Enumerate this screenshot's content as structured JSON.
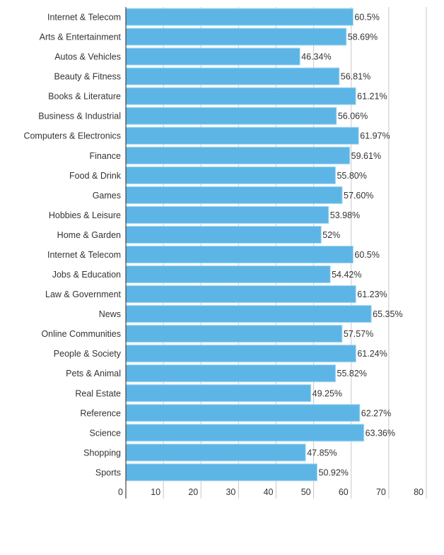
{
  "chart_data": {
    "type": "bar",
    "orientation": "horizontal",
    "categories": [
      "Internet & Telecom",
      "Arts & Entertainment",
      "Autos & Vehicles",
      "Beauty & Fitness",
      "Books & Literature",
      "Business & Industrial",
      "Computers & Electronics",
      "Finance",
      "Food & Drink",
      "Games",
      "Hobbies & Leisure",
      "Home & Garden",
      "Internet & Telecom",
      "Jobs & Education",
      "Law & Government",
      "News",
      "Online Communities",
      "People & Society",
      "Pets & Animal",
      "Real Estate",
      "Reference",
      "Science",
      "Shopping",
      "Sports"
    ],
    "values": [
      60.5,
      58.69,
      46.34,
      56.81,
      61.21,
      56.06,
      61.97,
      59.61,
      55.8,
      57.6,
      53.98,
      52,
      60.5,
      54.42,
      61.23,
      65.35,
      57.57,
      61.24,
      55.82,
      49.25,
      62.27,
      63.36,
      47.85,
      50.92
    ],
    "data_labels": [
      "60.5%",
      "58.69%",
      "46.34%",
      "56.81%",
      "61.21%",
      "56.06%",
      "61.97%",
      "59.61%",
      "55.80%",
      "57.60%",
      "53.98%",
      "52%",
      "60.5%",
      "54.42%",
      "61.23%",
      "65.35%",
      "57.57%",
      "61.24%",
      "55.82%",
      "49.25%",
      "62.27%",
      "63.36%",
      "47.85%",
      "50.92%"
    ],
    "xlim": [
      0,
      80
    ],
    "xticks": [
      "0",
      "10",
      "20",
      "30",
      "40",
      "50",
      "60",
      "70",
      "80"
    ],
    "grid": true,
    "bar_color": "#5db5e5",
    "title": "",
    "xlabel": "",
    "ylabel": ""
  }
}
